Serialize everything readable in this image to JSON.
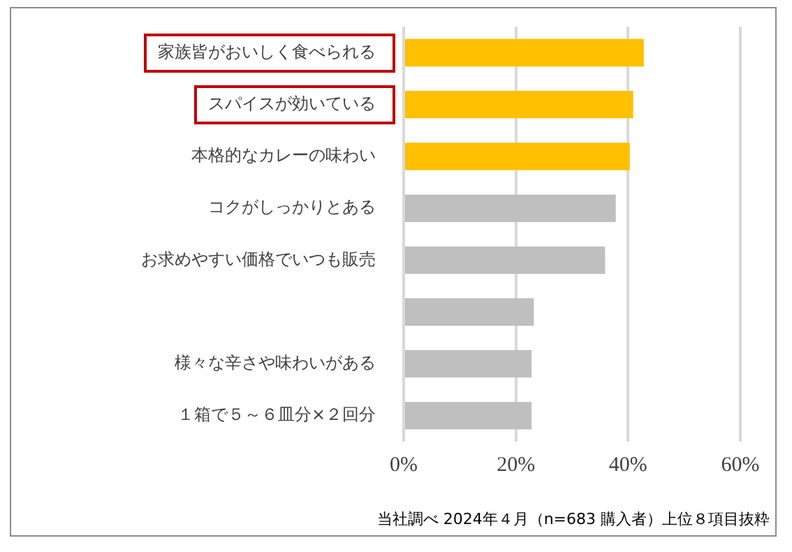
{
  "chart_data": {
    "type": "bar",
    "orientation": "horizontal",
    "categories": [
      "家族皆がおいしく食べられる",
      "スパイスが効いている",
      "本格的なカレーの味わい",
      "コクがしっかりとある",
      "お求めやすい価格でいつも販売",
      null,
      "様々な辛さや味わいがある",
      "１箱で５～６皿分×２回分"
    ],
    "values": [
      42.8,
      40.9,
      40.3,
      37.8,
      35.9,
      23.2,
      22.8,
      22.8
    ],
    "colors": [
      "#ffc000",
      "#ffc000",
      "#ffc000",
      "#bfbfbf",
      "#bfbfbf",
      "#bfbfbf",
      "#bfbfbf",
      "#bfbfbf"
    ],
    "xlim": [
      0,
      60
    ],
    "xticks": [
      {
        "value": 0,
        "label": "0%"
      },
      {
        "value": 20,
        "label": "20%"
      },
      {
        "value": 40,
        "label": "40%"
      },
      {
        "value": 60,
        "label": "60%"
      }
    ],
    "grid": "x",
    "annotations": [
      "当社調べ 2024年４月（n=683 購入者）上位８項目抜粋"
    ]
  }
}
